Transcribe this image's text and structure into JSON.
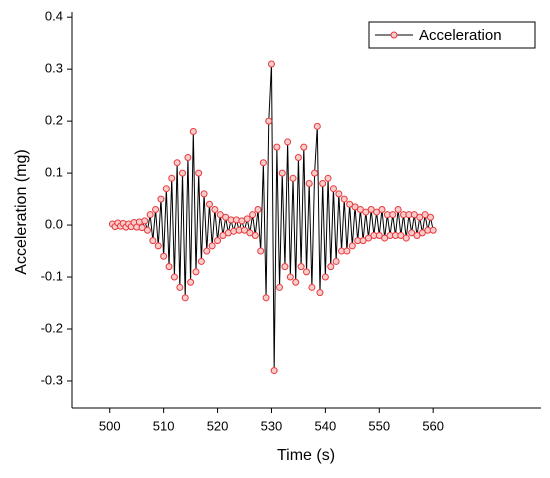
{
  "chart_data": {
    "type": "line",
    "xlabel": "Time (s)",
    "ylabel": "Acceleration (mg)",
    "x": [
      500.5,
      501,
      501.5,
      502,
      502.5,
      503,
      503.5,
      504,
      504.5,
      505,
      505.5,
      506,
      506.5,
      507,
      507.5,
      508,
      508.5,
      509,
      509.5,
      510,
      510.5,
      511,
      511.5,
      512,
      512.5,
      513,
      513.5,
      514,
      514.5,
      515,
      515.5,
      516,
      516.5,
      517,
      517.5,
      518,
      518.5,
      519,
      519.5,
      520,
      520.5,
      521,
      521.5,
      522,
      522.5,
      523,
      523.5,
      524,
      524.5,
      525,
      525.5,
      526,
      526.5,
      527,
      527.5,
      528,
      528.5,
      529,
      529.5,
      530,
      530.5,
      531,
      531.5,
      532,
      532.5,
      533,
      533.5,
      534,
      534.5,
      535,
      535.5,
      536,
      536.5,
      537,
      537.5,
      538,
      538.5,
      539,
      539.5,
      540,
      540.5,
      541,
      541.5,
      542,
      542.5,
      543,
      543.5,
      544,
      544.5,
      545,
      545.5,
      546,
      546.5,
      547,
      547.5,
      548,
      548.5,
      549,
      549.5,
      550,
      550.5,
      551,
      551.5,
      552,
      552.5,
      553,
      553.5,
      554,
      554.5,
      555,
      555.5,
      556,
      556.5,
      557,
      557.5,
      558,
      558.5,
      559,
      559.5,
      560
    ],
    "series": [
      {
        "name": "Acceleration",
        "color": "#e8393c",
        "line_color": "#000000",
        "values": [
          0.002,
          -0.003,
          0.004,
          -0.002,
          0.003,
          -0.004,
          0.002,
          -0.003,
          0.005,
          -0.004,
          0.006,
          -0.005,
          0.008,
          -0.01,
          0.02,
          -0.03,
          0.03,
          -0.04,
          0.05,
          -0.06,
          0.07,
          -0.08,
          0.09,
          -0.1,
          0.12,
          -0.12,
          0.1,
          -0.14,
          0.13,
          -0.11,
          0.18,
          -0.09,
          0.1,
          -0.07,
          0.06,
          -0.05,
          0.04,
          -0.04,
          0.03,
          -0.03,
          0.02,
          -0.02,
          0.015,
          -0.015,
          0.01,
          -0.012,
          0.01,
          -0.01,
          0.008,
          -0.01,
          0.012,
          -0.015,
          0.02,
          -0.02,
          0.03,
          -0.05,
          0.12,
          -0.14,
          0.2,
          0.31,
          -0.28,
          0.15,
          -0.12,
          0.1,
          -0.08,
          0.16,
          -0.1,
          0.09,
          -0.11,
          0.13,
          -0.08,
          0.15,
          -0.09,
          0.08,
          -0.12,
          0.1,
          0.19,
          -0.13,
          0.08,
          -0.1,
          0.09,
          -0.08,
          0.07,
          -0.07,
          0.06,
          -0.05,
          0.05,
          -0.05,
          0.04,
          -0.04,
          0.035,
          -0.03,
          0.03,
          -0.03,
          0.025,
          -0.025,
          0.03,
          -0.02,
          0.025,
          -0.02,
          0.03,
          -0.025,
          0.02,
          -0.02,
          0.02,
          -0.02,
          0.03,
          -0.02,
          0.02,
          -0.025,
          0.02,
          -0.015,
          0.02,
          -0.02,
          0.015,
          -0.015,
          0.02,
          -0.01,
          0.015,
          -0.01
        ]
      }
    ],
    "xlim": [
      493,
      580
    ],
    "xticks": [
      500,
      510,
      520,
      530,
      540,
      550,
      560
    ],
    "ylim": [
      -0.352,
      0.41
    ],
    "yticks": [
      -0.3,
      -0.2,
      -0.1,
      {
        "value": 0,
        "label": "0.0"
      },
      0.1,
      0.2,
      0.3,
      0.4
    ],
    "legend": "top-right"
  }
}
